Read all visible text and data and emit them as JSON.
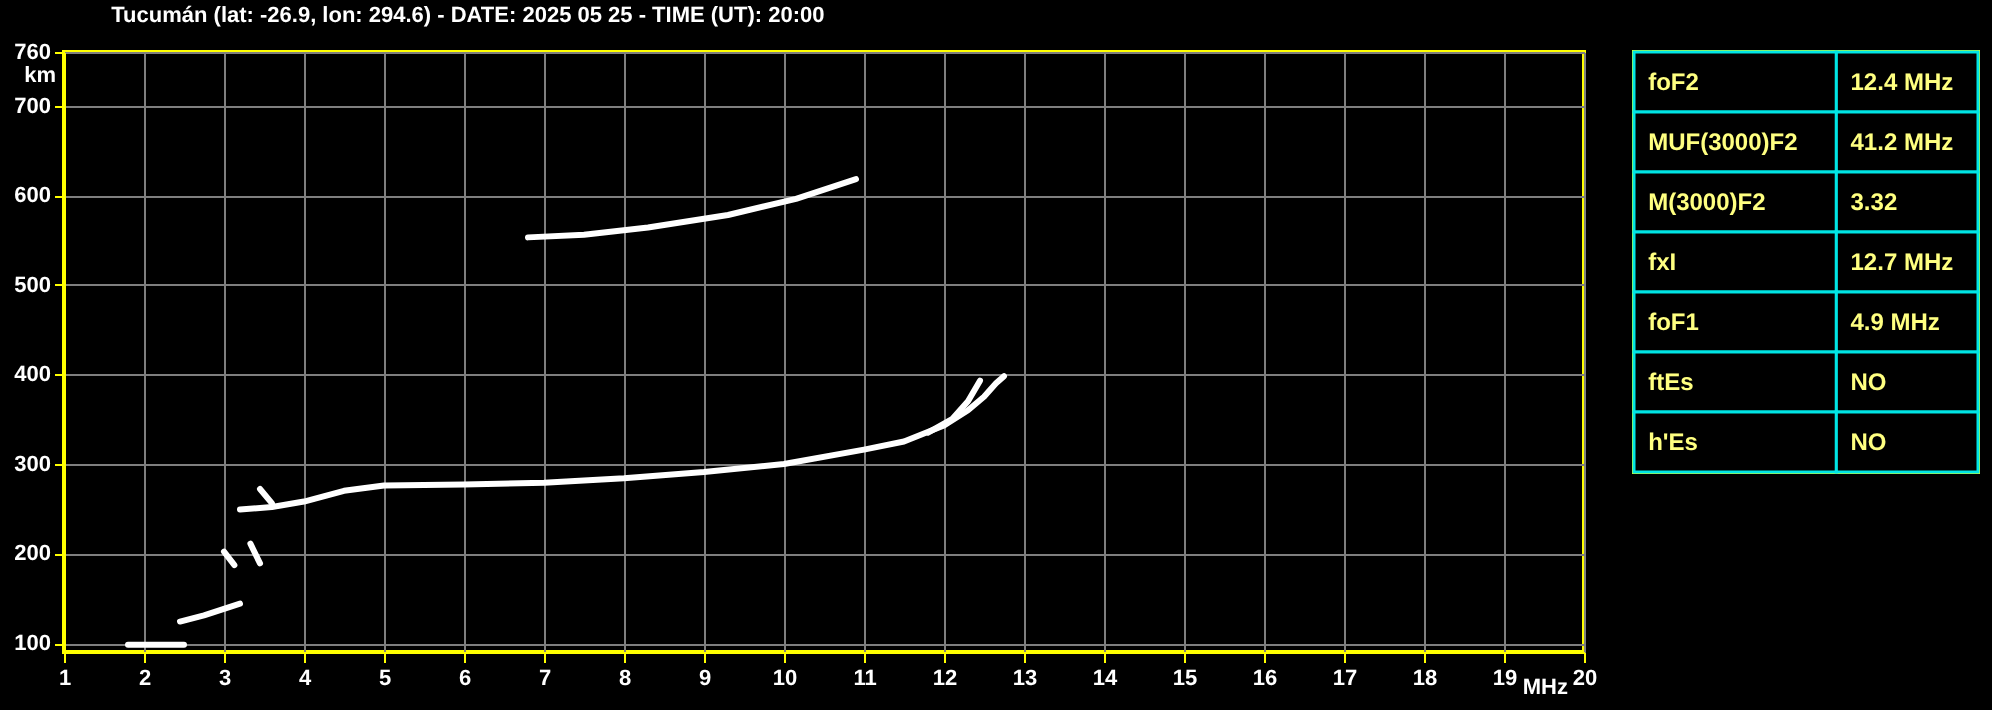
{
  "chart_data": [
    {
      "type": "line",
      "title": "Tucumán (lat: -26.9, lon: 294.6) - DATE: 2025 05 25 - TIME (UT): 20:00",
      "xlabel": "MHz",
      "ylabel": "km",
      "xlim": [
        1,
        20
      ],
      "ylim": [
        90,
        760
      ],
      "xticks": [
        1,
        2,
        3,
        4,
        5,
        6,
        7,
        8,
        9,
        10,
        11,
        12,
        13,
        14,
        15,
        16,
        17,
        18,
        19,
        20
      ],
      "yticks": [
        100,
        200,
        300,
        400,
        500,
        600,
        700,
        760
      ],
      "grid": true,
      "legend": false,
      "marker": "none",
      "line_style": "solid",
      "series": [
        {
          "color": "#ffffff",
          "x": [
            3.2,
            3.6,
            4,
            4.5,
            5,
            6,
            7,
            8,
            9,
            10,
            11,
            11.5,
            12,
            12.3,
            12.5,
            12.65,
            12.75
          ],
          "values": [
            249,
            252,
            258,
            270,
            276,
            277,
            279,
            284,
            291,
            300,
            316,
            325,
            343,
            360,
            375,
            390,
            398
          ]
        },
        {
          "color": "#ffffff",
          "x": [
            11.8,
            12.1,
            12.3,
            12.45
          ],
          "values": [
            335,
            350,
            370,
            393
          ]
        },
        {
          "color": "#ffffff",
          "x": [
            3.45,
            3.6
          ],
          "values": [
            272,
            256
          ]
        },
        {
          "color": "#ffffff",
          "x": [
            6.8,
            7.5,
            8.3,
            9.3,
            10.15,
            10.9
          ],
          "values": [
            553,
            556,
            564,
            578,
            596,
            618
          ]
        },
        {
          "color": "#ffffff",
          "x": [
            1.8,
            2.5
          ],
          "values": [
            98,
            98
          ]
        },
        {
          "color": "#ffffff",
          "x": [
            2.45,
            2.75,
            3.2
          ],
          "values": [
            124,
            131,
            144
          ]
        },
        {
          "color": "#ffffff",
          "x": [
            3.0,
            3.13
          ],
          "values": [
            202,
            187
          ]
        },
        {
          "color": "#ffffff",
          "x": [
            3.33,
            3.45
          ],
          "values": [
            211,
            189
          ]
        }
      ]
    },
    {
      "type": "other",
      "annotations": [
        "foF2",
        "12.4 MHz",
        "MUF(3000)F2",
        "41.2 MHz",
        "M(3000)F2",
        "3.32",
        "fxI",
        "12.7 MHz",
        "foF1",
        "4.9 MHz",
        "ftEs",
        "NO",
        "h'Es",
        "NO"
      ]
    }
  ]
}
